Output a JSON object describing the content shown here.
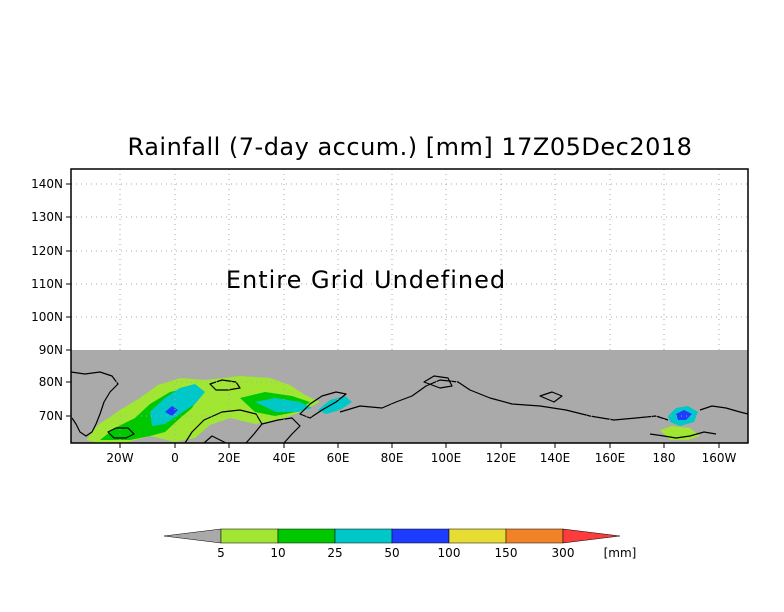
{
  "title": "Rainfall (7-day accum.) [mm] 17Z05Dec2018",
  "overlay_message": "Entire Grid Undefined",
  "lat_ticks": [
    "140N",
    "130N",
    "120N",
    "110N",
    "100N",
    "90N",
    "80N",
    "70N"
  ],
  "lon_ticks": [
    "20W",
    "0",
    "20E",
    "40E",
    "60E",
    "80E",
    "100E",
    "120E",
    "140E",
    "160E",
    "180",
    "160W"
  ],
  "colorbar": {
    "labels": [
      "5",
      "10",
      "25",
      "50",
      "100",
      "150",
      "300"
    ],
    "unit": "[mm]",
    "under_color": "#a9a9a9",
    "colors": [
      "#a0e632",
      "#00c800",
      "#00c8c8",
      "#1e3cff",
      "#e6dc32",
      "#f08228",
      "#fa3c3c"
    ]
  },
  "colors": {
    "undefined_fill": "#aaaaaa",
    "coast": "#000000",
    "grid": "#aaaaaa"
  }
}
